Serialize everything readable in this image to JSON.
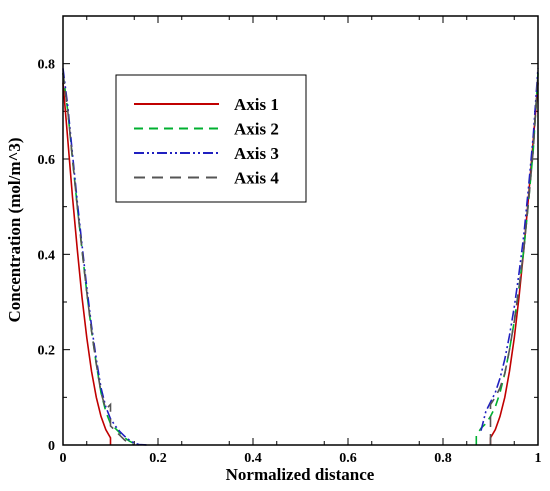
{
  "chart_data": {
    "type": "line",
    "xlabel": "Normalized distance",
    "ylabel": "Concentration (mol/m^3)",
    "xlim": [
      0,
      1
    ],
    "ylim": [
      0,
      0.9
    ],
    "xticks": [
      0,
      0.2,
      0.4,
      0.6,
      0.8,
      1
    ],
    "xtick_labels": [
      "0",
      "0.2",
      "0.4",
      "0.6",
      "0.8",
      "1"
    ],
    "yticks": [
      0,
      0.2,
      0.4,
      0.6,
      0.8
    ],
    "ytick_labels": [
      "0",
      "0.2",
      "0.4",
      "0.6",
      "0.8"
    ],
    "grid": false,
    "legend_position": "top-left",
    "series": [
      {
        "name": "Axis 1",
        "color": "#c00000",
        "dash": "solid",
        "segments": [
          [
            [
              0,
              0.76
            ],
            [
              0.01,
              0.64
            ],
            [
              0.02,
              0.52
            ],
            [
              0.03,
              0.41
            ],
            [
              0.04,
              0.31
            ],
            [
              0.05,
              0.225
            ],
            [
              0.06,
              0.155
            ],
            [
              0.07,
              0.1
            ],
            [
              0.08,
              0.06
            ],
            [
              0.09,
              0.032
            ],
            [
              0.1,
              0.015
            ],
            [
              0.1,
              0
            ]
          ],
          [
            [
              0.9,
              0
            ],
            [
              0.9,
              0.015
            ],
            [
              0.91,
              0.032
            ],
            [
              0.92,
              0.06
            ],
            [
              0.93,
              0.1
            ],
            [
              0.94,
              0.155
            ],
            [
              0.95,
              0.225
            ],
            [
              0.96,
              0.31
            ],
            [
              0.97,
              0.41
            ],
            [
              0.98,
              0.52
            ],
            [
              0.99,
              0.64
            ],
            [
              1,
              0.76
            ]
          ]
        ]
      },
      {
        "name": "Axis 2",
        "color": "#00b030",
        "dash": "dashed",
        "segments": [
          [
            [
              0,
              0.78
            ],
            [
              0.01,
              0.7
            ],
            [
              0.02,
              0.6
            ],
            [
              0.03,
              0.5
            ],
            [
              0.04,
              0.41
            ],
            [
              0.05,
              0.32
            ],
            [
              0.06,
              0.24
            ],
            [
              0.07,
              0.17
            ],
            [
              0.08,
              0.11
            ],
            [
              0.09,
              0.07
            ],
            [
              0.1,
              0.045
            ],
            [
              0.11,
              0.035
            ],
            [
              0.12,
              0.025
            ],
            [
              0.13,
              0.015
            ],
            [
              0.14,
              0.008
            ],
            [
              0.15,
              0.003
            ],
            [
              0.16,
              0
            ]
          ],
          [
            [
              0.87,
              0
            ],
            [
              0.87,
              0.02
            ],
            [
              0.88,
              0.035
            ],
            [
              0.89,
              0.045
            ],
            [
              0.9,
              0.06
            ],
            [
              0.91,
              0.08
            ],
            [
              0.92,
              0.11
            ],
            [
              0.93,
              0.15
            ],
            [
              0.94,
              0.2
            ],
            [
              0.95,
              0.26
            ],
            [
              0.96,
              0.33
            ],
            [
              0.97,
              0.41
            ],
            [
              0.98,
              0.51
            ],
            [
              0.99,
              0.62
            ],
            [
              1,
              0.78
            ]
          ]
        ]
      },
      {
        "name": "Axis 3",
        "color": "#2020c0",
        "dash": "dashdotdot",
        "segments": [
          [
            [
              0,
              0.79
            ],
            [
              0.01,
              0.71
            ],
            [
              0.02,
              0.61
            ],
            [
              0.03,
              0.51
            ],
            [
              0.04,
              0.42
            ],
            [
              0.05,
              0.33
            ],
            [
              0.06,
              0.25
            ],
            [
              0.07,
              0.18
            ],
            [
              0.08,
              0.12
            ],
            [
              0.09,
              0.08
            ],
            [
              0.1,
              0.055
            ],
            [
              0.11,
              0.04
            ],
            [
              0.12,
              0.028
            ],
            [
              0.13,
              0.018
            ],
            [
              0.14,
              0.01
            ],
            [
              0.15,
              0.004
            ],
            [
              0.16,
              0.001
            ],
            [
              0.18,
              0
            ]
          ],
          [
            [
              0.88,
              0.03
            ],
            [
              0.89,
              0.07
            ],
            [
              0.9,
              0.09
            ],
            [
              0.91,
              0.11
            ],
            [
              0.92,
              0.14
            ],
            [
              0.93,
              0.18
            ],
            [
              0.94,
              0.23
            ],
            [
              0.95,
              0.29
            ],
            [
              0.96,
              0.36
            ],
            [
              0.97,
              0.44
            ],
            [
              0.98,
              0.54
            ],
            [
              0.99,
              0.65
            ],
            [
              1,
              0.79
            ]
          ]
        ]
      },
      {
        "name": "Axis 4",
        "color": "#555555",
        "dash": "longdash",
        "segments": [
          [
            [
              0,
              0.78
            ],
            [
              0.01,
              0.7
            ],
            [
              0.02,
              0.6
            ],
            [
              0.03,
              0.5
            ],
            [
              0.04,
              0.41
            ],
            [
              0.05,
              0.32
            ],
            [
              0.06,
              0.24
            ],
            [
              0.07,
              0.17
            ],
            [
              0.08,
              0.11
            ],
            [
              0.09,
              0.075
            ],
            [
              0.1,
              0.085
            ],
            [
              0.1,
              0.04
            ],
            [
              0.11,
              0.03
            ],
            [
              0.12,
              0.02
            ],
            [
              0.13,
              0.01
            ],
            [
              0.14,
              0.004
            ],
            [
              0.15,
              0
            ]
          ],
          [
            [
              0.9,
              0
            ],
            [
              0.9,
              0.085
            ],
            [
              0.91,
              0.1
            ],
            [
              0.92,
              0.12
            ],
            [
              0.93,
              0.15
            ],
            [
              0.94,
              0.2
            ],
            [
              0.95,
              0.26
            ],
            [
              0.96,
              0.33
            ],
            [
              0.97,
              0.41
            ],
            [
              0.98,
              0.51
            ],
            [
              0.99,
              0.62
            ],
            [
              1,
              0.78
            ]
          ]
        ]
      }
    ]
  }
}
